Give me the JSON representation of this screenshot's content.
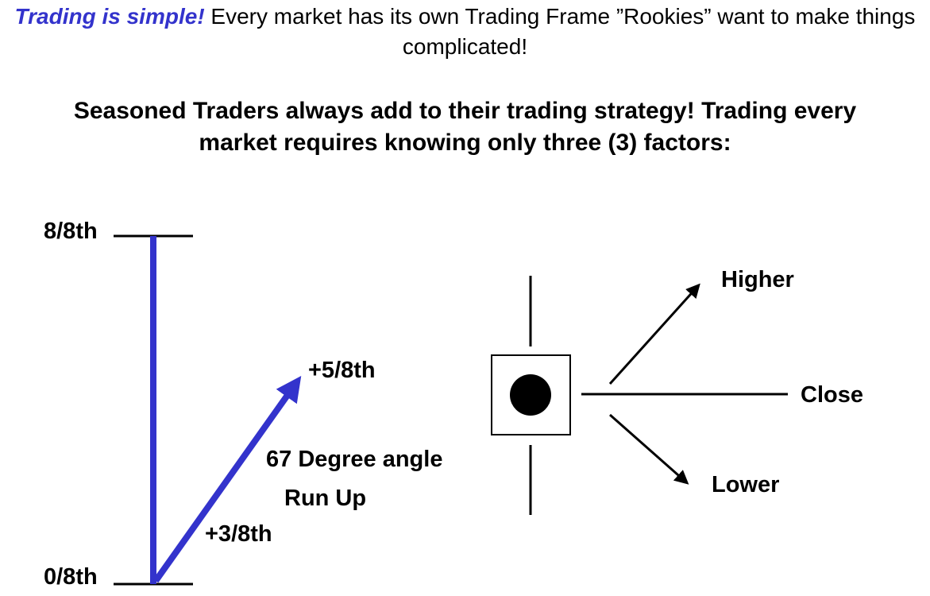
{
  "intro": {
    "highlight": "Trading is simple!",
    "text": " Every market has its own Trading Frame ”Rookies” want to make things complicated!"
  },
  "headline": {
    "line1": "Seasoned Traders always add to their trading strategy! Trading every",
    "line2": "market requires knowing only three (3) factors:"
  },
  "left_diagram": {
    "top_level_label": "8/8th",
    "bottom_level_label": "0/8th",
    "target_label": "+5/8th",
    "midpoint_label": "+3/8th",
    "angle_label": "67 Degree angle",
    "run_label": "Run Up"
  },
  "right_diagram": {
    "higher_label": "Higher",
    "close_label": "Close",
    "lower_label": "Lower"
  },
  "colors": {
    "accent_blue": "#3333cc",
    "ink": "#000000"
  }
}
